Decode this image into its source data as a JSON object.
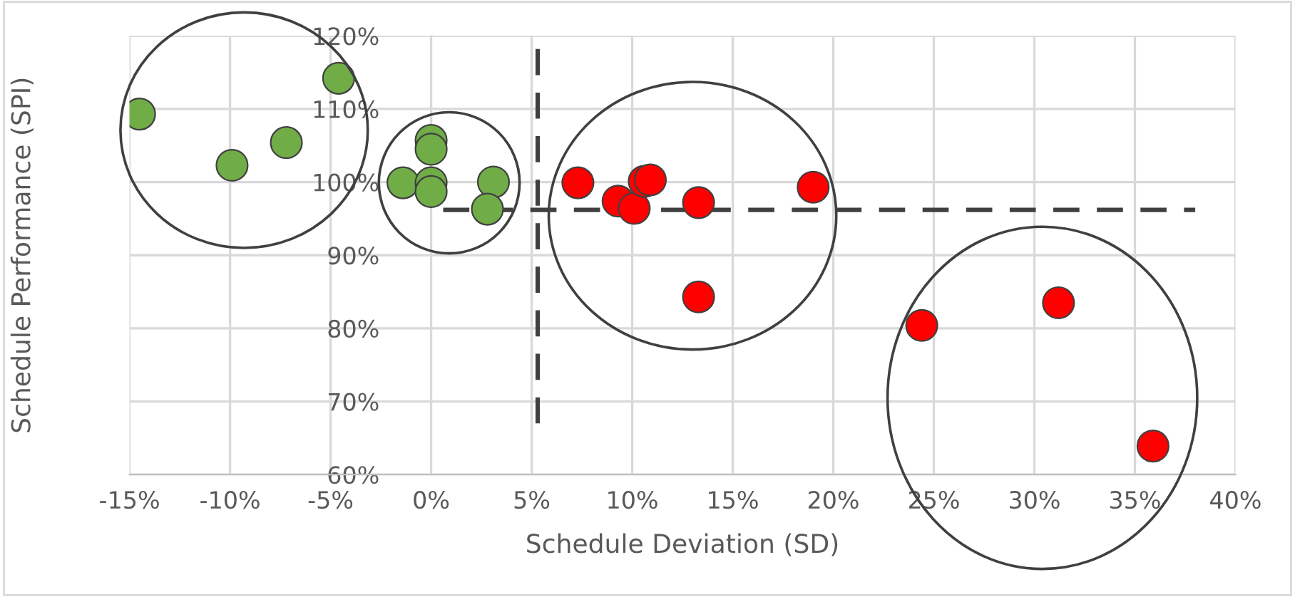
{
  "chart_data": {
    "type": "scatter",
    "xlabel": "Schedule Deviation (SD)",
    "ylabel": "Schedule Performance (SPI)",
    "xlim": [
      -15,
      40
    ],
    "ylim": [
      60,
      120
    ],
    "xticks": [
      {
        "value": -15,
        "label": "-15%"
      },
      {
        "value": -10,
        "label": "-10%"
      },
      {
        "value": -5,
        "label": "-5%"
      },
      {
        "value": 0,
        "label": "0%"
      },
      {
        "value": 5,
        "label": "5%"
      },
      {
        "value": 10,
        "label": "10%"
      },
      {
        "value": 15,
        "label": "15%"
      },
      {
        "value": 20,
        "label": "20%"
      },
      {
        "value": 25,
        "label": "25%"
      },
      {
        "value": 30,
        "label": "30%"
      },
      {
        "value": 35,
        "label": "35%"
      },
      {
        "value": 40,
        "label": "40%"
      }
    ],
    "yticks": [
      {
        "value": 60,
        "label": "60%"
      },
      {
        "value": 70,
        "label": "70%"
      },
      {
        "value": 80,
        "label": "80%"
      },
      {
        "value": 90,
        "label": "90%"
      },
      {
        "value": 100,
        "label": "100%"
      },
      {
        "value": 110,
        "label": "110%"
      },
      {
        "value": 120,
        "label": "120%"
      }
    ],
    "grid": true,
    "marker": "circle",
    "legend": false,
    "series": [
      {
        "color": "#70ad47",
        "x": [
          -14.5,
          -9.9,
          -7.2,
          -4.6,
          -1.4,
          0,
          0,
          0,
          0,
          3.1,
          2.8
        ],
        "values": [
          109.3,
          102.3,
          105.4,
          114.2,
          99.9,
          105.7,
          104.5,
          99.9,
          98.7,
          100.0,
          96.3
        ]
      },
      {
        "color": "#ff0000",
        "x": [
          7.3,
          9.3,
          10.1,
          10.6,
          10.9,
          13.3,
          13.3,
          19.0,
          24.4,
          31.2,
          35.9
        ],
        "values": [
          99.9,
          97.4,
          96.4,
          100.1,
          100.3,
          97.2,
          84.3,
          99.3,
          80.4,
          83.5,
          63.9
        ]
      },
      {
        "type": "line",
        "color": "#404040",
        "line_style": "dashed",
        "marker": "none",
        "x": [
          5.3,
          5.3
        ],
        "values": [
          67,
          120
        ]
      },
      {
        "type": "line",
        "color": "#404040",
        "line_style": "dashed",
        "marker": "none",
        "x": [
          0.6,
          38
        ],
        "values": [
          96.2,
          96.2
        ]
      }
    ]
  }
}
